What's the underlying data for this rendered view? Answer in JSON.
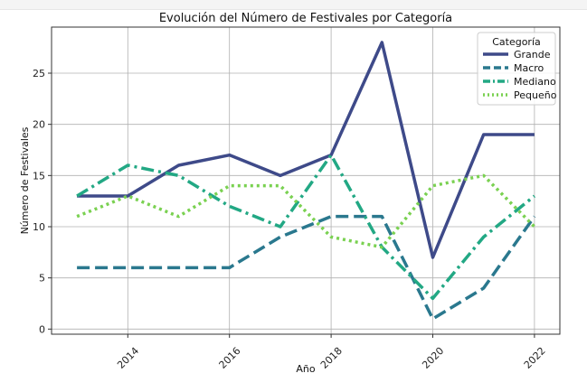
{
  "chart_data": {
    "type": "line",
    "title": "Evolución del Número de Festivales por Categoría",
    "xlabel": "Año",
    "ylabel": "Número de Festivales",
    "x": [
      2013,
      2014,
      2015,
      2016,
      2017,
      2018,
      2019,
      2020,
      2021,
      2022
    ],
    "xlim": [
      2012.5,
      2022.5
    ],
    "ylim": [
      -0.5,
      29.5
    ],
    "xticks": [
      "2014",
      "2016",
      "2018",
      "2020",
      "2022"
    ],
    "yticks": [
      "0",
      "5",
      "10",
      "15",
      "20",
      "25"
    ],
    "grid": true,
    "legend": {
      "title": "Categoría",
      "placement": "top-right"
    },
    "series": [
      {
        "name": "Grande",
        "color": "#3e4a89",
        "style": "solid",
        "values": [
          13,
          13,
          16,
          17,
          15,
          17,
          28,
          7,
          19,
          19
        ]
      },
      {
        "name": "Macro",
        "color": "#2a788e",
        "style": "dashed",
        "values": [
          6,
          6,
          6,
          6,
          9,
          11,
          11,
          1,
          4,
          11
        ]
      },
      {
        "name": "Mediano",
        "color": "#22a884",
        "style": "dashdot",
        "values": [
          13,
          16,
          15,
          12,
          10,
          17,
          8,
          3,
          9,
          13
        ]
      },
      {
        "name": "Pequeño",
        "color": "#7ad151",
        "style": "dotted",
        "values": [
          11,
          13,
          11,
          14,
          14,
          9,
          8,
          14,
          15,
          10
        ]
      }
    ]
  }
}
